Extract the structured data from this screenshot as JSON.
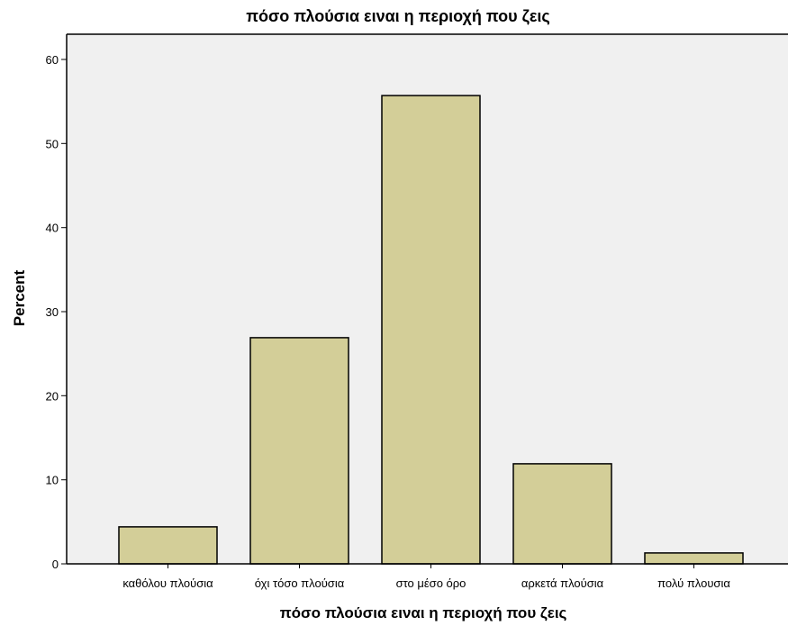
{
  "chart_data": {
    "type": "bar",
    "title": "πόσο πλούσια ειναι η περιοχή που ζεις",
    "xlabel": "πόσο πλούσια ειναι η περιοχή που ζεις",
    "ylabel": "Percent",
    "categories": [
      "καθόλου πλούσια",
      "όχι τόσο πλούσια",
      "στο μέσο όρο",
      "αρκετά πλούσια",
      "πολύ πλουσια"
    ],
    "values": [
      4.4,
      26.9,
      55.7,
      11.9,
      1.3
    ],
    "ylim": [
      0,
      63
    ],
    "yticks": [
      0,
      10,
      20,
      30,
      40,
      50,
      60
    ],
    "grid": false,
    "colors": {
      "bar_fill": "#d3ce98",
      "bar_stroke": "#000000",
      "plot_background": "#f0f0f0",
      "axis": "#000000"
    }
  }
}
